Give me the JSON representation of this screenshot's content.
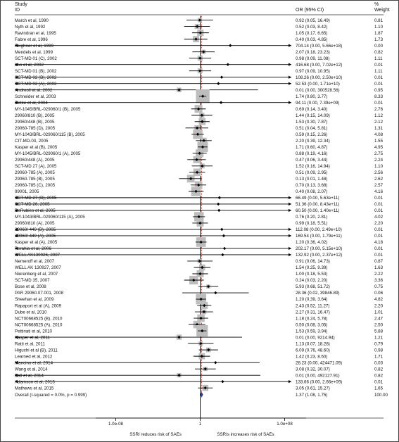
{
  "chart_data": {
    "type": "forest",
    "headers": {
      "left_line1": "Study",
      "left_line2": "ID",
      "mid": "OR (95% CI)",
      "right_line1": "%",
      "right_line2": "Weight"
    },
    "x_scale": "log",
    "x_ticks": [
      "1.0e-08",
      "1",
      "1.0e+08"
    ],
    "x_tick_values": [
      1e-08,
      1,
      100000000.0
    ],
    "xlabel_left": "SSRI reduces risk of SAEs",
    "xlabel_right": "SSRIs increases risk of SAEs",
    "studies": [
      {
        "id": "March et al, 1990",
        "or": 0.92,
        "lo": 0.05,
        "hi": 16.49,
        "ci": "0.92 (0.05, 16.49)",
        "weight": "0.81"
      },
      {
        "id": "Nyth et al, 1992",
        "or": 0.52,
        "lo": 0.03,
        "hi": 8.42,
        "ci": "0.52 (0.03, 8.42)",
        "weight": "1.10"
      },
      {
        "id": "Ravindran et al, 1995",
        "or": 1.05,
        "lo": 0.17,
        "hi": 6.65,
        "ci": "1.05 (0.17, 6.65)",
        "weight": "1.87"
      },
      {
        "id": "Fabre et al, 1996",
        "or": 0.4,
        "lo": 0.03,
        "hi": 4.85,
        "ci": "0.40 (0.03, 4.85)",
        "weight": "1.73"
      },
      {
        "id": "Feighner et al, 1999",
        "or": 704.14,
        "lo": 0.0,
        "hi": 5.66e+18,
        "ci": "704.14 (0.00, 5.66e+18)",
        "weight": "0.00"
      },
      {
        "id": "Mendels et al, 1999",
        "or": 2.07,
        "lo": 0.18,
        "hi": 23.23,
        "ci": "2.07 (0.18, 23.23)",
        "weight": "0.82"
      },
      {
        "id": "SCT-MD 01 (C), 2002",
        "or": 0.98,
        "lo": 0.09,
        "hi": 11.08,
        "ci": "0.98 (0.09, 11.08)",
        "weight": "1.11"
      },
      {
        "id": "Loo et al, 2002",
        "or": 416.68,
        "lo": 0.0,
        "hi": 7020000000000.0,
        "ci": "416.68 (0.00, 7.02e+12)",
        "weight": "0.01"
      },
      {
        "id": "SCT-MD 01 (B), 2002",
        "or": 0.97,
        "lo": 0.09,
        "hi": 10.95,
        "ci": "0.97 (0.09, 10.95)",
        "weight": "1.11"
      },
      {
        "id": "SCT-MD 02 (B), 2002",
        "or": 108.26,
        "lo": 0.0,
        "hi": 25000000000.0,
        "ci": "108.26 (0.00, 2.50e+10)",
        "weight": "0.01"
      },
      {
        "id": "SCT-MD 02 (A), 2002",
        "or": 52.53,
        "lo": 0.0,
        "hi": 17100000000.0,
        "ci": "52.53 (0.00, 1.71e+10)",
        "weight": "0.01"
      },
      {
        "id": "Andreoli et al, 2002",
        "or": 0.01,
        "lo": 0.0,
        "hi": 300528.56,
        "ci": "0.01 (0.00, 300528.56)",
        "weight": "0.95"
      },
      {
        "id": "Schneider et al, 2003",
        "or": 1.74,
        "lo": 0.8,
        "hi": 3.77,
        "ci": "1.74 (0.80, 3.77)",
        "weight": "8.33"
      },
      {
        "id": "Detke et al, 2004",
        "or": 94.11,
        "lo": 0.0,
        "hi": 7390000000.0,
        "ci": "94.11 (0.00, 7.39e+09)",
        "weight": "0.01"
      },
      {
        "id": "MY-1045/BRL-029060/1 (B), 2005",
        "or": 0.69,
        "lo": 0.14,
        "hi": 3.4,
        "ci": "0.69 (0.14, 3.40)",
        "weight": "2.76"
      },
      {
        "id": "29060/810 (B), 2005",
        "or": 1.44,
        "lo": 0.15,
        "hi": 14.09,
        "ci": "1.44 (0.15, 14.09)",
        "weight": "1.12"
      },
      {
        "id": "29060/448 (B), 2005",
        "or": 1.53,
        "lo": 0.3,
        "hi": 7.87,
        "ci": "1.53 (0.30, 7.87)",
        "weight": "2.12"
      },
      {
        "id": "29060-785 (D), 2005",
        "or": 0.51,
        "lo": 0.04,
        "hi": 5.81,
        "ci": "0.51 (0.04, 5.81)",
        "weight": "1.31"
      },
      {
        "id": "MY-1043/BRL-029060/115 (B), 2005",
        "or": 0.59,
        "lo": 0.15,
        "hi": 2.26,
        "ci": "0.59 (0.15, 2.26)",
        "weight": "4.08"
      },
      {
        "id": "CIT-MD-03, 2005",
        "or": 2.2,
        "lo": 0.39,
        "hi": 12.34,
        "ci": "2.20 (0.39, 12.34)",
        "weight": "1.55"
      },
      {
        "id": "Kasper et al (B), 2005",
        "or": 1.71,
        "lo": 0.6,
        "hi": 4.87,
        "ci": "1.71 (0.60, 4.87)",
        "weight": "4.95"
      },
      {
        "id": "MY-1045/BRL-029060/1 (A), 2005",
        "or": 0.88,
        "lo": 0.19,
        "hi": 4.16,
        "ci": "0.88 (0.19, 4.16)",
        "weight": "2.75"
      },
      {
        "id": "29060/448 (A), 2005",
        "or": 0.47,
        "lo": 0.06,
        "hi": 3.44,
        "ci": "0.47 (0.06, 3.44)",
        "weight": "2.24"
      },
      {
        "id": "SCT-MD 27 (A), 2005",
        "or": 1.52,
        "lo": 0.16,
        "hi": 14.94,
        "ci": "1.52 (0.16, 14.94)",
        "weight": "1.10"
      },
      {
        "id": "29060-785 (A), 2005",
        "or": 0.51,
        "lo": 0.09,
        "hi": 2.95,
        "ci": "0.51 (0.09, 2.95)",
        "weight": "2.56"
      },
      {
        "id": "29060-785 (B), 2005",
        "or": 0.13,
        "lo": 0.01,
        "hi": 1.48,
        "ci": "0.13 (0.01, 1.48)",
        "weight": "2.62"
      },
      {
        "id": "29060-785 (C), 2005",
        "or": 0.7,
        "lo": 0.13,
        "hi": 3.68,
        "ci": "0.70 (0.13, 3.68)",
        "weight": "2.57"
      },
      {
        "id": "99001, 2005",
        "or": 0.4,
        "lo": 0.08,
        "hi": 2.07,
        "ci": "0.40 (0.08, 2.07)",
        "weight": "4.16"
      },
      {
        "id": "SCT-MD 27 (B), 2005",
        "or": 66.49,
        "lo": 0.0,
        "hi": 563000000000.0,
        "ci": "66.49 (0.00, 5.63e+11)",
        "weight": "0.01"
      },
      {
        "id": "SCT-MD 26, 2005",
        "or": 51.36,
        "lo": 0.0,
        "hi": 843000000000.0,
        "ci": "51.36 (0.00, 8.43e+11)",
        "weight": "0.01"
      },
      {
        "id": "DeRubies et al, 2005",
        "or": 60.5,
        "lo": 0.0,
        "hi": 140000000000.0,
        "ci": "60.50 (0.00, 1.40e+11)",
        "weight": "0.01"
      },
      {
        "id": "MY-1043/BRL-029060/115 (A), 2005",
        "or": 0.76,
        "lo": 0.2,
        "hi": 2.81,
        "ci": "0.76 (0.20, 2.81)",
        "weight": "4.02"
      },
      {
        "id": "29060/810 (A), 2005",
        "or": 0.99,
        "lo": 0.18,
        "hi": 5.51,
        "ci": "0.99 (0.18, 5.51)",
        "weight": "2.20"
      },
      {
        "id": "29060/ 449 (B), 2005",
        "or": 112.08,
        "lo": 0.0,
        "hi": 24900000000.0,
        "ci": "112.08 (0.00, 2.49e+10)",
        "weight": "0.01"
      },
      {
        "id": "29060/ 449 (A), 2005",
        "or": 169.54,
        "lo": 0.0,
        "hi": 179000000000.0,
        "ci": "169.54 (0.00, 1.79e+11)",
        "weight": "0.01"
      },
      {
        "id": "Kasper et al (A), 2005",
        "or": 1.2,
        "lo": 0.36,
        "hi": 4.02,
        "ci": "1.20 (0.36, 4.02)",
        "weight": "4.18"
      },
      {
        "id": "Perahia et al, 2006",
        "or": 202.17,
        "lo": 0.0,
        "hi": 51500000000.0,
        "ci": "202.17 (0.00, 5.15e+10)",
        "weight": "0.01"
      },
      {
        "id": "WELL AK130926, 2007",
        "or": 132.92,
        "lo": 0.0,
        "hi": 2370000000000.0,
        "ci": "132.92 (0.00, 2.37e+12)",
        "weight": "0.01"
      },
      {
        "id": "Nemeroff et al, 2007",
        "or": 0.91,
        "lo": 0.06,
        "hi": 14.73,
        "ci": "0.91 (0.06, 14.73)",
        "weight": "0.87"
      },
      {
        "id": "WELL AK 130927, 2007",
        "or": 1.54,
        "lo": 0.25,
        "hi": 9.39,
        "ci": "1.54 (0.25, 9.39)",
        "weight": "1.63"
      },
      {
        "id": "Nierenberg et al, 2007",
        "or": 1.0,
        "lo": 0.18,
        "hi": 5.53,
        "ci": "1.00 (0.18, 5.53)",
        "weight": "2.22"
      },
      {
        "id": "SCT-MD 35, 2007",
        "or": 0.24,
        "lo": 0.03,
        "hi": 2.2,
        "ci": "0.24 (0.03, 2.20)",
        "weight": "3.36"
      },
      {
        "id": "Bose et al, 2008",
        "or": 5.93,
        "lo": 0.68,
        "hi": 51.72,
        "ci": "5.93 (0.68, 51.72)",
        "weight": "0.75"
      },
      {
        "id": "PAR 29060.07.001, 2008",
        "or": 28.36,
        "lo": 0.02,
        "hi": 39846.89,
        "ci": "28.36 (0.02, 39846.89)",
        "weight": "0.06"
      },
      {
        "id": "Sheehan et al, 2009",
        "or": 1.2,
        "lo": 0.39,
        "hi": 3.64,
        "ci": "1.20 (0.39, 3.64)",
        "weight": "4.82"
      },
      {
        "id": "Rapaport et al (A), 2009",
        "or": 2.43,
        "lo": 0.52,
        "hi": 11.27,
        "ci": "2.43 (0.52, 11.27)",
        "weight": "2.20"
      },
      {
        "id": "Dube et al, 2010",
        "or": 2.27,
        "lo": 0.31,
        "hi": 16.47,
        "ci": "2.27 (0.31, 16.47)",
        "weight": "1.01"
      },
      {
        "id": "NCT00668525 (B), 2010",
        "or": 1.18,
        "lo": 0.24,
        "hi": 5.78,
        "ci": "1.18 (0.24, 5.78)",
        "weight": "2.47"
      },
      {
        "id": "NCT00668525 (A), 2010",
        "or": 0.5,
        "lo": 0.08,
        "hi": 3.05,
        "ci": "0.50 (0.08, 3.05)",
        "weight": "2.50"
      },
      {
        "id": "Pettinati et al, 2010",
        "or": 1.53,
        "lo": 0.59,
        "hi": 3.94,
        "ci": "1.53 (0.59, 3.94)",
        "weight": "5.88"
      },
      {
        "id": "Kasper et al, 2011",
        "or": 0.01,
        "lo": 0.0,
        "hi": 9214.94,
        "ci": "0.01 (0.00, 9214.94)",
        "weight": "1.21"
      },
      {
        "id": "Ratti et al, 2011",
        "or": 1.13,
        "lo": 0.07,
        "hi": 18.28,
        "ci": "1.13 (0.07, 18.28)",
        "weight": "0.79"
      },
      {
        "id": "Higuchi et al (B), 2011",
        "or": 6.09,
        "lo": 0.76,
        "hi": 48.6,
        "ci": "6.09 (0.76, 48.60)",
        "weight": "0.98"
      },
      {
        "id": "Learned et al, 2012",
        "or": 1.42,
        "lo": 0.23,
        "hi": 8.6,
        "ci": "1.42 (0.23, 8.60)",
        "weight": "1.71"
      },
      {
        "id": "Mancino et al, 2014",
        "or": 28.23,
        "lo": 0.0,
        "hi": 424471.09,
        "ci": "28.23 (0.00, 424471.09)",
        "weight": "0.03"
      },
      {
        "id": "Wang et al, 2014",
        "or": 3.08,
        "lo": 0.32,
        "hi": 30.07,
        "ci": "3.08 (0.32, 30.07)",
        "weight": "0.82"
      },
      {
        "id": "Ball et al, 2014",
        "or": 0.01,
        "lo": 0.0,
        "hi": 492127.91,
        "ci": "0.01 (0.00, 492127.91)",
        "weight": "0.82"
      },
      {
        "id": "Adamson et al, 2015",
        "or": 133.66,
        "lo": 0.0,
        "hi": 2660000000.0,
        "ci": "133.66 (0.00, 2.66e+09)",
        "weight": "0.01"
      },
      {
        "id": "Mathews et al, 2015",
        "or": 3.05,
        "lo": 0.61,
        "hi": 15.27,
        "ci": "3.05 (0.61, 15.27)",
        "weight": "1.65"
      }
    ],
    "overall": {
      "id": "Overall  (I-squared = 0.0%, p = 0.999)",
      "or": 1.37,
      "lo": 1.08,
      "hi": 1.75,
      "ci": "1.37 (1.08, 1.75)",
      "weight": "100.00"
    }
  }
}
